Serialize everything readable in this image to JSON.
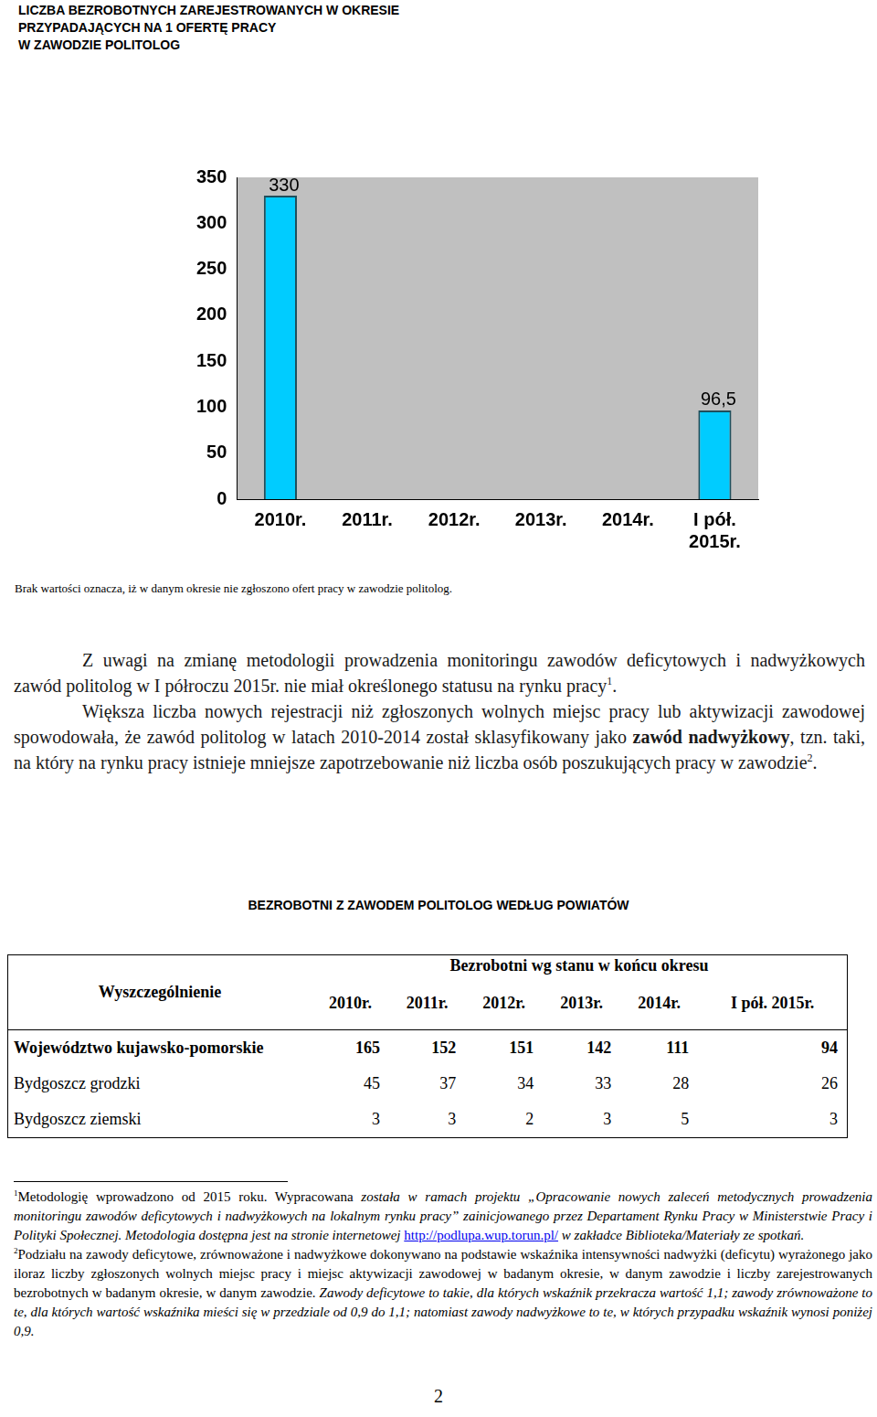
{
  "header": {
    "lines": [
      "LICZBA BEZROBOTNYCH ZAREJESTROWANYCH W OKRESIE",
      "PRZYPADAJĄCYCH NA 1 OFERTĘ PRACY",
      "W ZAWODZIE  POLITOLOG"
    ]
  },
  "chart_data": {
    "type": "bar",
    "categories": [
      "2010r.",
      "2011r.",
      "2012r.",
      "2013r.",
      "2014r.",
      "I pół. 2015r."
    ],
    "values": [
      330,
      null,
      null,
      null,
      null,
      96.5
    ],
    "value_labels": [
      "330",
      null,
      null,
      null,
      null,
      "96,5"
    ],
    "data_labels": true,
    "color": "#00ccff",
    "ylim": [
      0,
      350
    ],
    "yticks": [
      0,
      50,
      100,
      150,
      200,
      250,
      300,
      350
    ],
    "grid": false
  },
  "note": "Brak wartości  oznacza, iż w danym okresie nie zgłoszono ofert pracy w zawodzie politolog.",
  "paragraphs": [
    [
      {
        "text": "Z uwagi na zmianę metodologii prowadzenia monitoringu zawodów deficytowych i nadwyżkowych zawód politolog w I półroczu 2015r. nie miał określonego statusu na rynku pracy"
      },
      {
        "text": "1",
        "style": "sup"
      },
      {
        "text": "."
      }
    ],
    [
      {
        "text": "Większa liczba nowych rejestracji niż zgłoszonych wolnych miejsc pracy lub aktywizacji zawodowej spowodowała, że zawód politolog w latach 2010-2014 został sklasyfikowany jako "
      },
      {
        "text": "zawód nadwyżkowy",
        "style": "bold"
      },
      {
        "text": ", tzn. taki, na który na rynku pracy istnieje mniejsze zapotrzebowanie niż liczba osób poszukujących pracy w zawodzie"
      },
      {
        "text": "2",
        "style": "sup"
      },
      {
        "text": "."
      }
    ]
  ],
  "table": {
    "title": "BEZROBOTNI Z ZAWODEM POLITOLOG WEDŁUG POWIATÓW",
    "row_header": "Wyszczególnienie",
    "group_header": "Bezrobotni wg stanu w końcu okresu",
    "columns": [
      "2010r.",
      "2011r.",
      "2012r.",
      "2013r.",
      "2014r.",
      "I pół. 2015r."
    ],
    "rows": [
      {
        "label": "Województwo kujawsko-pomorskie",
        "bold": true,
        "values": [
          165,
          152,
          151,
          142,
          111,
          94
        ]
      },
      {
        "label": "Bydgoszcz grodzki",
        "values": [
          45,
          37,
          34,
          33,
          28,
          26
        ]
      },
      {
        "label": "Bydgoszcz ziemski",
        "values": [
          3,
          3,
          2,
          3,
          5,
          3
        ]
      }
    ]
  },
  "footnotes": [
    {
      "marker": "1",
      "segments": [
        {
          "text": "Metodologię wprowadzono od 2015 roku. Wypracowana  "
        },
        {
          "text": "została w ramach projektu „Opracowanie nowych zaleceń metodycznych prowadzenia monitoringu zawodów deficytowych i nadwyżkowych na lokalnym rynku pracy” zainicjowanego przez Departament Rynku Pracy w Ministerstwie Pracy i Polityki Społecznej. Metodologia dostępna jest na stronie internetowej ",
          "style": "italic"
        },
        {
          "text": "http://podlupa.wup.torun.pl/",
          "style": "link"
        },
        {
          "text": "  w zakładce Biblioteka/Materiały ze spotkań.",
          "style": "italic"
        }
      ]
    },
    {
      "marker": "2",
      "segments": [
        {
          "text": "Podziału na zawody deficytowe, zrównoważone i nadwyżkowe dokonywano na podstawie wskaźnika intensywności nadwyżki (deficytu) wyrażonego jako iloraz liczby zgłoszonych wolnych miejsc pracy i miejsc aktywizacji zawodowej w badanym okresie, w danym zawodzie i liczby zarejestrowanych bezrobotnych w badanym okresie, w danym zawodzie. "
        },
        {
          "text": "Zawody deficytowe to takie, dla których wskaźnik przekracza wartość 1,1; zawody zrównoważone to te, dla których wartość wskaźnika mieści się w przedziale od 0,9 do 1,1; natomiast zawody nadwyżkowe to te, w których przypadku wskaźnik wynosi poniżej 0,9.",
          "style": "italic"
        }
      ]
    }
  ],
  "page_number": "2"
}
